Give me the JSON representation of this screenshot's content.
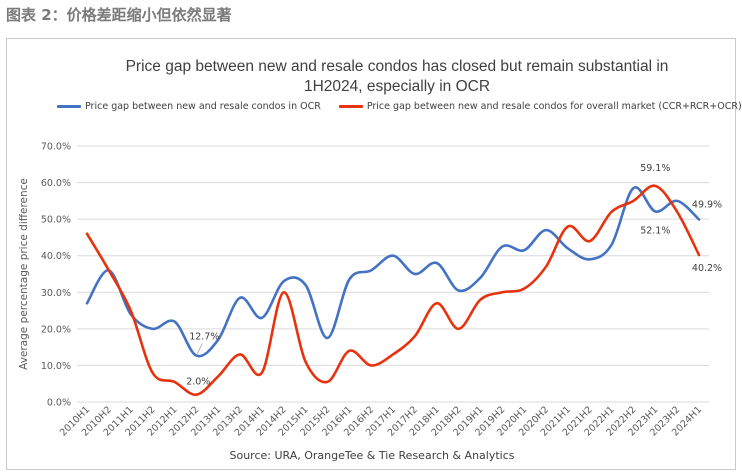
{
  "figure_caption": "图表 2：价格差距缩小但依然显著",
  "source_text": "Source: URA, OrangeTee & Tie Research & Analytics",
  "colors": {
    "blue": "#4472c4",
    "red": "#e8320e"
  },
  "chart_data": {
    "type": "line",
    "title_line1": "Price gap between new and resale condos has closed but remain substantial in",
    "title_line2": "1H2024, especially in OCR",
    "ylabel": "Average percentage price difference",
    "xlabel": "",
    "ylim": [
      0,
      70
    ],
    "yticks": [
      "0.0%",
      "10.0%",
      "20.0%",
      "30.0%",
      "40.0%",
      "50.0%",
      "60.0%",
      "70.0%"
    ],
    "grid": true,
    "legend_position": "top",
    "categories": [
      "2010H1",
      "2010H2",
      "2011H1",
      "2011H2",
      "2012H1",
      "2012H2",
      "2013H1",
      "2013H2",
      "2014H1",
      "2014H2",
      "2015H1",
      "2015H2",
      "2016H1",
      "2016H2",
      "2017H1",
      "2017H2",
      "2018H1",
      "2018H2",
      "2019H1",
      "2019H2",
      "2020H1",
      "2020H2",
      "2021H1",
      "2021H2",
      "2022H1",
      "2022H2",
      "2023H1",
      "2023H2",
      "2024H1"
    ],
    "series": [
      {
        "name": "Price gap between new and resale condos in OCR",
        "color": "#4472c4",
        "values": [
          27,
          36,
          24,
          20,
          22,
          12.7,
          17,
          28.5,
          23,
          33,
          32,
          17.5,
          33.5,
          36,
          40,
          35,
          38,
          30.5,
          34,
          42.5,
          41.5,
          47,
          42,
          39,
          43,
          58.5,
          52.1,
          55,
          49.9
        ]
      },
      {
        "name": "Price gap between new and resale condos for overall market (CCR+RCR+OCR)",
        "color": "#e8320e",
        "values": [
          46,
          36,
          25,
          8,
          5.5,
          2.0,
          7,
          13,
          8,
          30,
          11,
          5.5,
          14,
          10,
          13,
          18,
          27,
          20,
          28,
          30,
          31,
          37,
          48,
          44,
          52,
          55,
          59.1,
          52,
          40.2
        ]
      }
    ],
    "annotations": [
      {
        "text": "12.7%",
        "series": 0,
        "index": 5
      },
      {
        "text": "2.0%",
        "series": 1,
        "index": 5
      },
      {
        "text": "59.1%",
        "series": 1,
        "index": 26
      },
      {
        "text": "52.1%",
        "series": 0,
        "index": 26
      },
      {
        "text": "49.9%",
        "series": 0,
        "index": 28
      },
      {
        "text": "40.2%",
        "series": 1,
        "index": 28
      }
    ]
  }
}
